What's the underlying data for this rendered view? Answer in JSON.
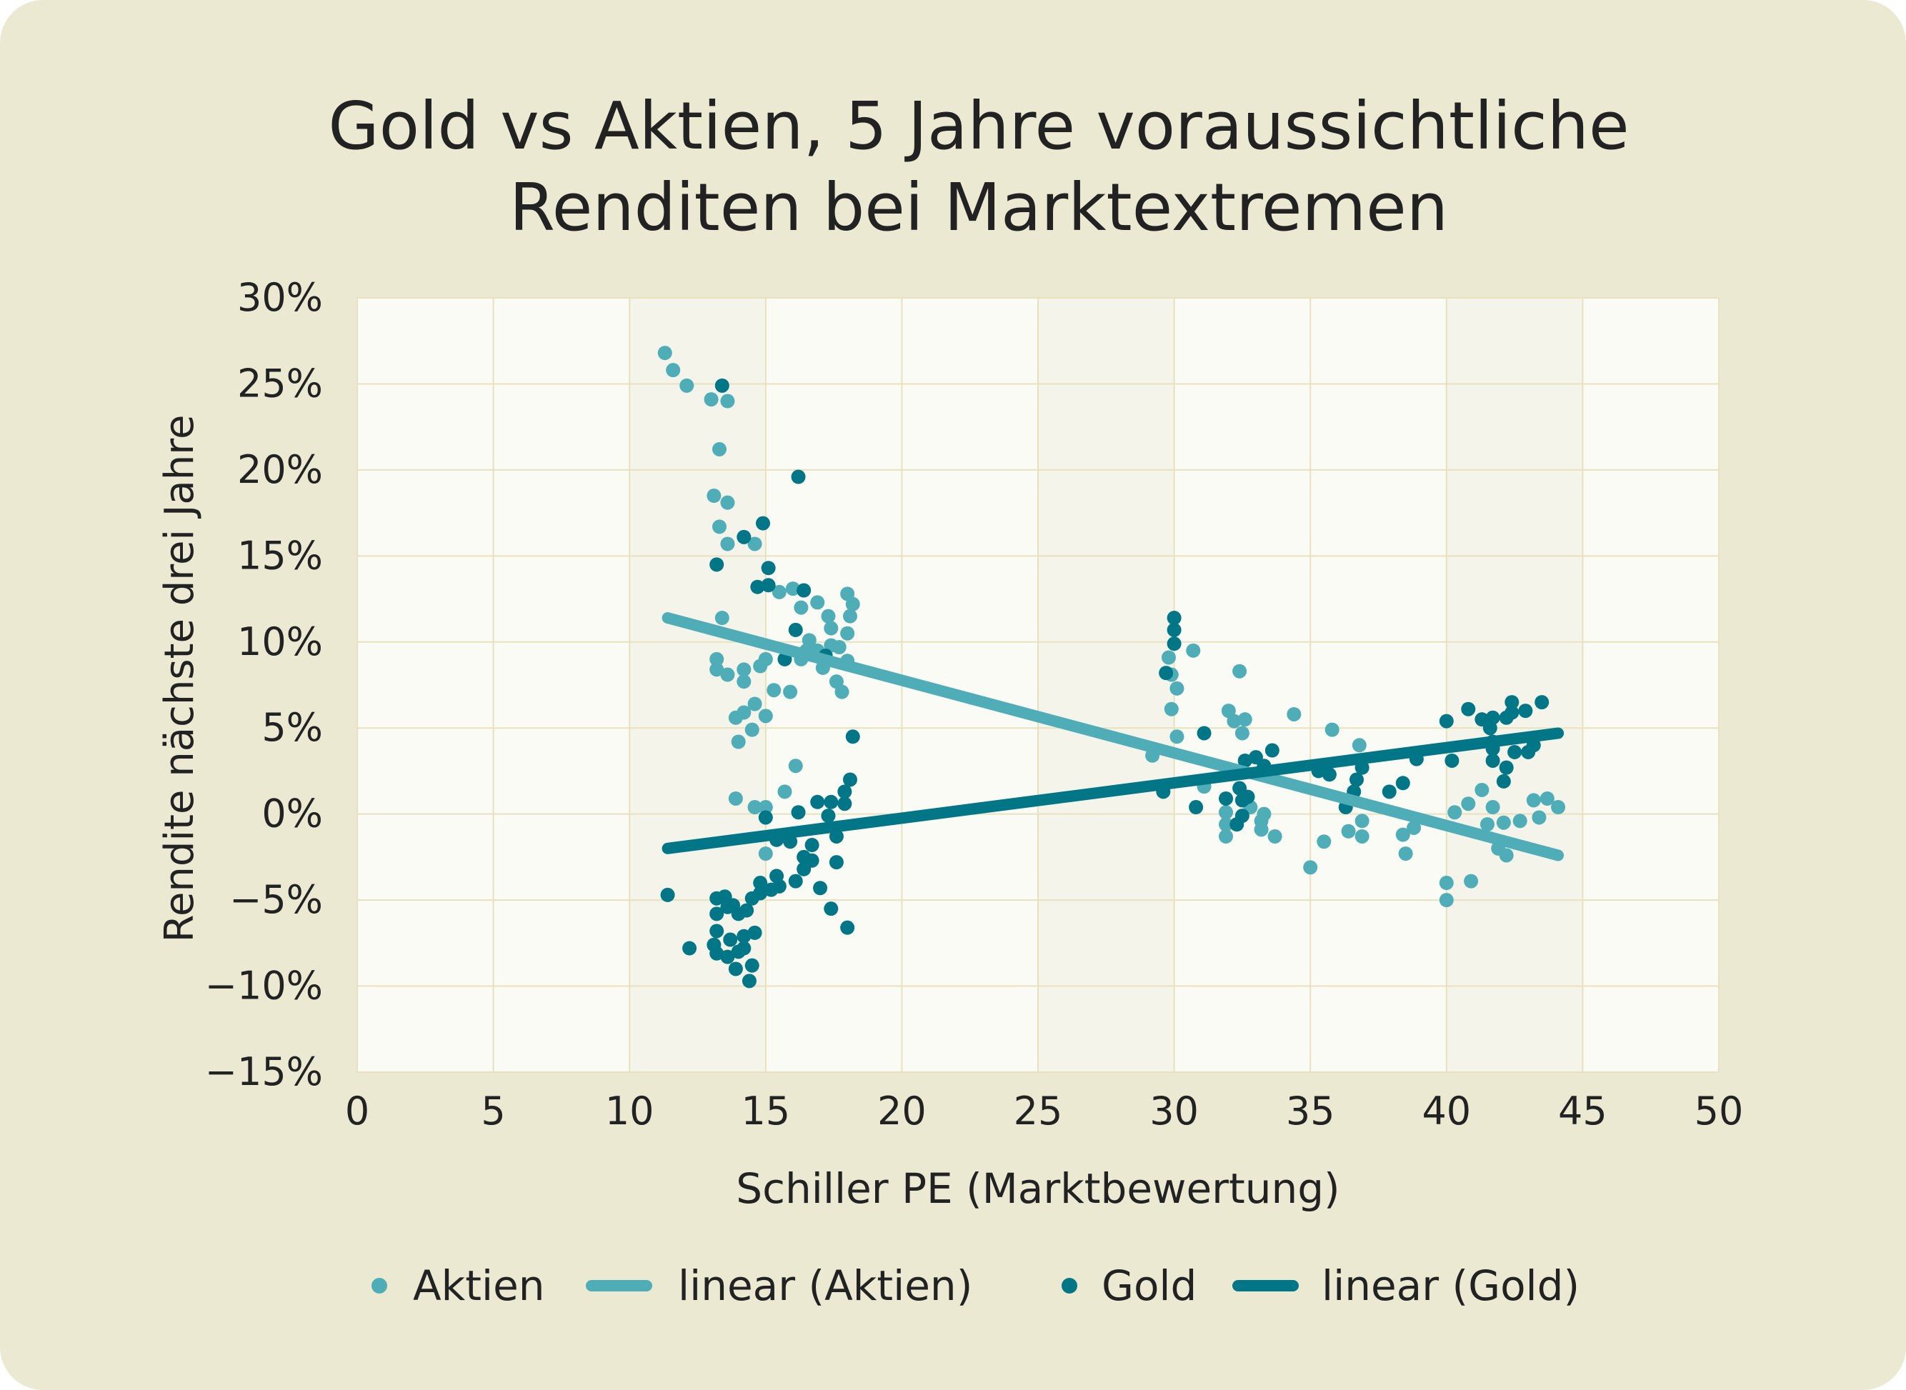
{
  "chart_data": {
    "type": "scatter",
    "title": [
      "Gold vs Aktien, 5 Jahre voraussichtliche",
      "Renditen bei Marktextremen"
    ],
    "xlabel": "Schiller PE (Marktbewertung)",
    "ylabel": "Rendite nächste drei Jahre",
    "xlim": [
      0,
      50
    ],
    "ylim": [
      -15,
      30
    ],
    "x_ticks": [
      "0",
      "5",
      "10",
      "15",
      "20",
      "25",
      "30",
      "35",
      "40",
      "45",
      "50"
    ],
    "y_ticks": [
      "30%",
      "25%",
      "20%",
      "15%",
      "10%",
      "5%",
      "0%",
      "−5%",
      "−10%",
      "−15%"
    ],
    "grid": true,
    "legend_position": "bottom",
    "colors": {
      "aktien": "#4fadb8",
      "gold": "#017687",
      "background": "#ece9d3",
      "plot_background": "#fbfbf5"
    },
    "legend": [
      "Aktien",
      "linear (Aktien)",
      "Gold",
      "linear (Gold)"
    ],
    "series": [
      {
        "name": "Aktien",
        "kind": "points",
        "color": "#4fadb8",
        "points": [
          [
            11.3,
            26.8
          ],
          [
            11.6,
            25.8
          ],
          [
            12.1,
            24.9
          ],
          [
            13.0,
            24.1
          ],
          [
            13.6,
            24.0
          ],
          [
            13.3,
            21.2
          ],
          [
            13.1,
            18.5
          ],
          [
            13.6,
            18.1
          ],
          [
            13.3,
            16.7
          ],
          [
            13.6,
            15.7
          ],
          [
            14.6,
            15.7
          ],
          [
            13.4,
            11.4
          ],
          [
            13.2,
            9.0
          ],
          [
            13.2,
            8.4
          ],
          [
            13.6,
            8.1
          ],
          [
            14.2,
            8.4
          ],
          [
            14.2,
            7.7
          ],
          [
            14.8,
            8.6
          ],
          [
            15.0,
            9.0
          ],
          [
            13.9,
            5.6
          ],
          [
            14.0,
            4.2
          ],
          [
            14.2,
            5.9
          ],
          [
            14.5,
            4.9
          ],
          [
            14.6,
            6.4
          ],
          [
            15.0,
            5.7
          ],
          [
            15.3,
            7.2
          ],
          [
            15.9,
            7.1
          ],
          [
            16.3,
            9.0
          ],
          [
            16.1,
            2.8
          ],
          [
            13.9,
            0.9
          ],
          [
            14.6,
            0.4
          ],
          [
            15.0,
            0.4
          ],
          [
            15.7,
            1.3
          ],
          [
            15.0,
            -2.3
          ],
          [
            15.5,
            12.9
          ],
          [
            16.0,
            13.1
          ],
          [
            16.3,
            12.0
          ],
          [
            16.6,
            10.1
          ],
          [
            16.5,
            9.5
          ],
          [
            16.9,
            12.3
          ],
          [
            17.3,
            11.5
          ],
          [
            17.4,
            10.8
          ],
          [
            18.0,
            12.8
          ],
          [
            18.2,
            12.2
          ],
          [
            18.1,
            11.5
          ],
          [
            18.0,
            10.5
          ],
          [
            18.0,
            8.9
          ],
          [
            17.6,
            7.7
          ],
          [
            17.8,
            7.1
          ],
          [
            16.9,
            9.5
          ],
          [
            17.1,
            8.5
          ],
          [
            17.4,
            9.8
          ],
          [
            17.7,
            9.7
          ],
          [
            29.8,
            9.1
          ],
          [
            29.9,
            8.1
          ],
          [
            30.7,
            9.5
          ],
          [
            29.9,
            6.1
          ],
          [
            30.1,
            7.3
          ],
          [
            30.1,
            4.5
          ],
          [
            29.2,
            3.4
          ],
          [
            32.4,
            8.3
          ],
          [
            32.0,
            6.0
          ],
          [
            32.2,
            5.4
          ],
          [
            32.6,
            5.5
          ],
          [
            32.5,
            4.7
          ],
          [
            34.4,
            5.8
          ],
          [
            35.8,
            4.9
          ],
          [
            36.8,
            4.0
          ],
          [
            31.1,
            1.6
          ],
          [
            31.9,
            0.1
          ],
          [
            31.9,
            -0.6
          ],
          [
            31.9,
            -1.3
          ],
          [
            32.8,
            0.4
          ],
          [
            33.2,
            -0.4
          ],
          [
            33.3,
            0.0
          ],
          [
            33.2,
            -0.9
          ],
          [
            33.7,
            -1.3
          ],
          [
            35.0,
            -3.1
          ],
          [
            35.5,
            -1.6
          ],
          [
            36.4,
            -1.0
          ],
          [
            36.9,
            -0.4
          ],
          [
            36.9,
            -1.3
          ],
          [
            38.4,
            -1.2
          ],
          [
            38.5,
            -2.3
          ],
          [
            38.8,
            -0.8
          ],
          [
            40.0,
            -4.0
          ],
          [
            40.0,
            -5.0
          ],
          [
            40.3,
            0.1
          ],
          [
            40.8,
            0.6
          ],
          [
            40.9,
            -3.9
          ],
          [
            41.3,
            1.4
          ],
          [
            41.5,
            -0.6
          ],
          [
            41.7,
            0.4
          ],
          [
            41.9,
            -2.0
          ],
          [
            42.2,
            -2.4
          ],
          [
            42.1,
            -0.5
          ],
          [
            42.7,
            -0.4
          ],
          [
            43.2,
            0.8
          ],
          [
            43.4,
            -0.2
          ],
          [
            43.7,
            0.9
          ],
          [
            44.1,
            0.4
          ]
        ]
      },
      {
        "name": "linear (Aktien)",
        "kind": "line",
        "color": "#4fadb8",
        "points": [
          [
            11.4,
            11.4
          ],
          [
            44.1,
            -2.4
          ]
        ]
      },
      {
        "name": "Gold",
        "kind": "points",
        "color": "#017687",
        "points": [
          [
            13.4,
            24.9
          ],
          [
            13.2,
            14.5
          ],
          [
            14.2,
            16.1
          ],
          [
            14.9,
            16.9
          ],
          [
            14.7,
            13.2
          ],
          [
            15.1,
            14.3
          ],
          [
            15.1,
            13.3
          ],
          [
            16.2,
            19.6
          ],
          [
            16.4,
            13.0
          ],
          [
            15.7,
            9.0
          ],
          [
            16.1,
            10.7
          ],
          [
            17.2,
            9.2
          ],
          [
            11.4,
            -4.7
          ],
          [
            12.2,
            -7.8
          ],
          [
            18.2,
            4.5
          ],
          [
            18.1,
            2.0
          ],
          [
            13.2,
            -4.9
          ],
          [
            13.5,
            -4.8
          ],
          [
            13.6,
            -5.4
          ],
          [
            13.2,
            -5.8
          ],
          [
            13.8,
            -5.3
          ],
          [
            14.0,
            -5.8
          ],
          [
            14.3,
            -5.6
          ],
          [
            13.2,
            -6.8
          ],
          [
            13.1,
            -7.6
          ],
          [
            13.7,
            -7.3
          ],
          [
            14.2,
            -7.1
          ],
          [
            14.6,
            -6.9
          ],
          [
            13.2,
            -8.1
          ],
          [
            13.6,
            -8.3
          ],
          [
            13.9,
            -9.0
          ],
          [
            14.2,
            -7.8
          ],
          [
            14.4,
            -9.7
          ],
          [
            14.5,
            -8.8
          ],
          [
            14.8,
            -4.0
          ],
          [
            15.2,
            -4.4
          ],
          [
            15.4,
            -3.6
          ],
          [
            15.5,
            -4.2
          ],
          [
            15.0,
            -0.2
          ],
          [
            15.4,
            -1.5
          ],
          [
            15.9,
            -1.6
          ],
          [
            16.1,
            -3.9
          ],
          [
            16.2,
            0.1
          ],
          [
            16.4,
            -3.2
          ],
          [
            16.4,
            -2.5
          ],
          [
            16.7,
            -2.7
          ],
          [
            16.7,
            -1.8
          ],
          [
            16.9,
            0.7
          ],
          [
            17.4,
            0.7
          ],
          [
            17.9,
            0.6
          ],
          [
            17.9,
            1.3
          ],
          [
            17.6,
            -1.3
          ],
          [
            17.3,
            -0.1
          ],
          [
            17.0,
            -4.3
          ],
          [
            17.4,
            -5.5
          ],
          [
            17.6,
            -2.8
          ],
          [
            18.0,
            -6.6
          ],
          [
            14.5,
            -4.9
          ],
          [
            14.0,
            -8.0
          ],
          [
            14.8,
            -4.6
          ],
          [
            30.0,
            11.4
          ],
          [
            30.0,
            10.7
          ],
          [
            30.0,
            9.9
          ],
          [
            29.7,
            8.2
          ],
          [
            29.6,
            1.3
          ],
          [
            30.8,
            0.4
          ],
          [
            31.1,
            4.7
          ],
          [
            31.9,
            0.9
          ],
          [
            32.4,
            1.5
          ],
          [
            32.5,
            0.8
          ],
          [
            32.7,
            1.0
          ],
          [
            32.5,
            -0.1
          ],
          [
            32.3,
            -0.6
          ],
          [
            32.6,
            3.1
          ],
          [
            33.0,
            3.3
          ],
          [
            33.3,
            2.8
          ],
          [
            33.6,
            3.7
          ],
          [
            35.3,
            2.5
          ],
          [
            35.7,
            2.3
          ],
          [
            36.3,
            0.4
          ],
          [
            36.6,
            1.3
          ],
          [
            36.7,
            2.0
          ],
          [
            36.9,
            2.7
          ],
          [
            37.9,
            1.3
          ],
          [
            38.4,
            1.8
          ],
          [
            38.9,
            3.2
          ],
          [
            40.0,
            5.4
          ],
          [
            40.2,
            3.1
          ],
          [
            40.8,
            6.1
          ],
          [
            41.3,
            5.5
          ],
          [
            41.6,
            5.0
          ],
          [
            41.7,
            5.6
          ],
          [
            41.7,
            4.2
          ],
          [
            41.7,
            3.1
          ],
          [
            41.7,
            3.8
          ],
          [
            42.2,
            5.6
          ],
          [
            42.4,
            6.5
          ],
          [
            42.4,
            5.9
          ],
          [
            42.1,
            1.9
          ],
          [
            42.2,
            2.7
          ],
          [
            42.5,
            3.6
          ],
          [
            42.9,
            6.0
          ],
          [
            43.0,
            3.6
          ],
          [
            43.2,
            4.0
          ],
          [
            43.5,
            6.5
          ]
        ]
      },
      {
        "name": "linear (Gold)",
        "kind": "line",
        "color": "#017687",
        "points": [
          [
            11.4,
            -2.0
          ],
          [
            44.1,
            4.7
          ]
        ]
      }
    ]
  }
}
